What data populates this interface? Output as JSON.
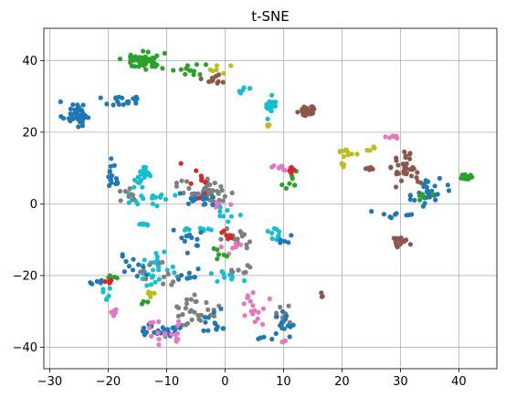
{
  "chart_data": {
    "type": "scatter",
    "title": "t-SNE",
    "xlabel": "",
    "ylabel": "",
    "xlim": [
      -31,
      46.5
    ],
    "ylim": [
      -46,
      49
    ],
    "xticks": [
      -30,
      -20,
      -10,
      0,
      10,
      20,
      30,
      40
    ],
    "yticks": [
      -40,
      -20,
      0,
      20,
      40
    ],
    "xtick_labels": [
      "−30",
      "−20",
      "−10",
      "0",
      "10",
      "20",
      "30",
      "40"
    ],
    "ytick_labels": [
      "−40",
      "−20",
      "0",
      "20",
      "40"
    ],
    "grid": true,
    "legend": "none",
    "colors": {
      "blue": "#1f77b4",
      "orange": "#ff7f0e",
      "green": "#2ca02c",
      "red": "#d62728",
      "brown": "#8c564b",
      "pink": "#e377c2",
      "gray": "#7f7f7f",
      "olive": "#bcbd22",
      "cyan": "#17becf",
      "grid": "#b0b0b0"
    },
    "clusters": [
      {
        "color": "blue",
        "cx": -25.5,
        "cy": 25,
        "sx": 2.0,
        "sy": 3.0,
        "n": 40
      },
      {
        "color": "blue",
        "cx": -18,
        "cy": 29,
        "sx": 2.5,
        "sy": 1.5,
        "n": 18
      },
      {
        "color": "green",
        "cx": -14,
        "cy": 40,
        "sx": 3.0,
        "sy": 2.0,
        "n": 55
      },
      {
        "color": "green",
        "cx": -6,
        "cy": 37,
        "sx": 2.2,
        "sy": 2.0,
        "n": 12
      },
      {
        "color": "brown",
        "cx": -2,
        "cy": 35,
        "sx": 1.6,
        "sy": 1.5,
        "n": 12
      },
      {
        "color": "olive",
        "cx": -1,
        "cy": 38,
        "sx": 1.5,
        "sy": 1.2,
        "n": 6
      },
      {
        "color": "cyan",
        "cx": 8,
        "cy": 27,
        "sx": 1.0,
        "sy": 2.5,
        "n": 18
      },
      {
        "color": "cyan",
        "cx": 3,
        "cy": 32,
        "sx": 1.5,
        "sy": 1.0,
        "n": 6
      },
      {
        "color": "brown",
        "cx": 14,
        "cy": 26,
        "sx": 1.2,
        "sy": 1.5,
        "n": 28
      },
      {
        "color": "olive",
        "cx": 7.5,
        "cy": 22,
        "sx": 0.4,
        "sy": 0.5,
        "n": 5
      },
      {
        "color": "olive",
        "cx": 21,
        "cy": 14.5,
        "sx": 1.5,
        "sy": 1.0,
        "n": 10
      },
      {
        "color": "olive",
        "cx": 25,
        "cy": 15,
        "sx": 1.0,
        "sy": 1.0,
        "n": 5
      },
      {
        "color": "olive",
        "cx": 20,
        "cy": 10.5,
        "sx": 0.4,
        "sy": 0.6,
        "n": 4
      },
      {
        "color": "brown",
        "cx": 25,
        "cy": 10,
        "sx": 0.8,
        "sy": 0.5,
        "n": 5
      },
      {
        "color": "pink",
        "cx": 29,
        "cy": 18.5,
        "sx": 1.2,
        "sy": 0.6,
        "n": 6
      },
      {
        "color": "brown",
        "cx": 31,
        "cy": 10,
        "sx": 2.0,
        "sy": 4.0,
        "n": 35
      },
      {
        "color": "brown",
        "cx": 30,
        "cy": -10.5,
        "sx": 1.3,
        "sy": 1.3,
        "n": 15
      },
      {
        "color": "blue",
        "cx": 35,
        "cy": 3,
        "sx": 2.5,
        "sy": 3.5,
        "n": 30
      },
      {
        "color": "blue",
        "cx": 29,
        "cy": -3,
        "sx": 3.0,
        "sy": 2.0,
        "n": 10
      },
      {
        "color": "green",
        "cx": 41.5,
        "cy": 7.5,
        "sx": 1.0,
        "sy": 1.0,
        "n": 14
      },
      {
        "color": "green",
        "cx": 34,
        "cy": 2,
        "sx": 2.0,
        "sy": 1.0,
        "n": 5
      },
      {
        "color": "cyan",
        "cx": -14,
        "cy": 8,
        "sx": 1.5,
        "sy": 2.0,
        "n": 22
      },
      {
        "color": "cyan",
        "cx": -13,
        "cy": 2,
        "sx": 4.0,
        "sy": 2.0,
        "n": 20
      },
      {
        "color": "cyan",
        "cx": -14,
        "cy": -5.5,
        "sx": 1.0,
        "sy": 0.5,
        "n": 8
      },
      {
        "color": "blue",
        "cx": -19,
        "cy": 8,
        "sx": 1.0,
        "sy": 4.0,
        "n": 14
      },
      {
        "color": "gray",
        "cx": -16,
        "cy": 3,
        "sx": 2.0,
        "sy": 2.0,
        "n": 8
      },
      {
        "color": "gray",
        "cx": -3,
        "cy": 3,
        "sx": 4.0,
        "sy": 3.0,
        "n": 45
      },
      {
        "color": "pink",
        "cx": -1,
        "cy": 0,
        "sx": 2.0,
        "sy": 1.5,
        "n": 5
      },
      {
        "color": "red",
        "cx": -5,
        "cy": 6,
        "sx": 3.0,
        "sy": 4.0,
        "n": 10
      },
      {
        "color": "blue",
        "cx": -4,
        "cy": 2,
        "sx": 3.0,
        "sy": 3.0,
        "n": 12
      },
      {
        "color": "pink",
        "cx": 10,
        "cy": 10,
        "sx": 1.5,
        "sy": 0.6,
        "n": 8
      },
      {
        "color": "green",
        "cx": 11,
        "cy": 6,
        "sx": 1.5,
        "sy": 3.0,
        "n": 8
      },
      {
        "color": "red",
        "cx": 12,
        "cy": 9.5,
        "sx": 1.5,
        "sy": 1.0,
        "n": 5
      },
      {
        "color": "cyan",
        "cx": -5,
        "cy": -7,
        "sx": 2.0,
        "sy": 0.5,
        "n": 8
      },
      {
        "color": "cyan",
        "cx": 0,
        "cy": -3,
        "sx": 2.0,
        "sy": 1.5,
        "n": 8
      },
      {
        "color": "gray",
        "cx": 2,
        "cy": -10,
        "sx": 3.0,
        "sy": 3.0,
        "n": 15
      },
      {
        "color": "pink",
        "cx": 2,
        "cy": -12,
        "sx": 2.0,
        "sy": 2.0,
        "n": 6
      },
      {
        "color": "red",
        "cx": 0,
        "cy": -9,
        "sx": 1.5,
        "sy": 1.5,
        "n": 6
      },
      {
        "color": "blue",
        "cx": -6,
        "cy": -10,
        "sx": 3.0,
        "sy": 3.0,
        "n": 12
      },
      {
        "color": "green",
        "cx": -1,
        "cy": -14,
        "sx": 2.0,
        "sy": 1.5,
        "n": 6
      },
      {
        "color": "cyan",
        "cx": 9,
        "cy": -8,
        "sx": 1.5,
        "sy": 1.5,
        "n": 10
      },
      {
        "color": "blue",
        "cx": 10,
        "cy": -10,
        "sx": 1.0,
        "sy": 2.0,
        "n": 5
      },
      {
        "color": "cyan",
        "cx": -12,
        "cy": -18,
        "sx": 3.0,
        "sy": 4.0,
        "n": 25
      },
      {
        "color": "blue",
        "cx": -16,
        "cy": -17,
        "sx": 2.0,
        "sy": 3.0,
        "n": 12
      },
      {
        "color": "gray",
        "cx": -12,
        "cy": -19,
        "sx": 3.0,
        "sy": 3.0,
        "n": 12
      },
      {
        "color": "green",
        "cx": -19,
        "cy": -21,
        "sx": 2.0,
        "sy": 1.0,
        "n": 6
      },
      {
        "color": "red",
        "cx": -20,
        "cy": -21.5,
        "sx": 1.0,
        "sy": 0.5,
        "n": 4
      },
      {
        "color": "blue",
        "cx": -22,
        "cy": -22,
        "sx": 1.0,
        "sy": 0.5,
        "n": 5
      },
      {
        "color": "cyan",
        "cx": -20,
        "cy": -26,
        "sx": 1.0,
        "sy": 2.0,
        "n": 6
      },
      {
        "color": "pink",
        "cx": -19,
        "cy": -31,
        "sx": 1.0,
        "sy": 1.5,
        "n": 5
      },
      {
        "color": "cyan",
        "cx": 0,
        "cy": -20,
        "sx": 2.5,
        "sy": 2.0,
        "n": 12
      },
      {
        "color": "gray",
        "cx": 3,
        "cy": -18,
        "sx": 2.0,
        "sy": 2.0,
        "n": 8
      },
      {
        "color": "blue",
        "cx": -6,
        "cy": -20,
        "sx": 2.0,
        "sy": 2.0,
        "n": 8
      },
      {
        "color": "gray",
        "cx": -5,
        "cy": -30,
        "sx": 3.0,
        "sy": 3.5,
        "n": 30
      },
      {
        "color": "blue",
        "cx": -11,
        "cy": -35,
        "sx": 2.5,
        "sy": 2.5,
        "n": 28
      },
      {
        "color": "pink",
        "cx": -10,
        "cy": -36,
        "sx": 4.0,
        "sy": 3.0,
        "n": 18
      },
      {
        "color": "blue",
        "cx": -2,
        "cy": -33,
        "sx": 2.5,
        "sy": 3.0,
        "n": 14
      },
      {
        "color": "pink",
        "cx": 5,
        "cy": -29,
        "sx": 2.0,
        "sy": 4.0,
        "n": 18
      },
      {
        "color": "gray",
        "cx": 10,
        "cy": -30,
        "sx": 1.5,
        "sy": 3.0,
        "n": 12
      },
      {
        "color": "blue",
        "cx": 10,
        "cy": -34,
        "sx": 1.5,
        "sy": 3.0,
        "n": 14
      },
      {
        "color": "blue",
        "cx": 7,
        "cy": -37.5,
        "sx": 1.0,
        "sy": 0.5,
        "n": 4
      },
      {
        "color": "pink",
        "cx": 10,
        "cy": -38.5,
        "sx": 0.5,
        "sy": 0.5,
        "n": 3
      },
      {
        "color": "brown",
        "cx": 16.5,
        "cy": -25.5,
        "sx": 0.2,
        "sy": 0.5,
        "n": 3
      },
      {
        "color": "olive",
        "cx": -13,
        "cy": -25,
        "sx": 1.0,
        "sy": 1.0,
        "n": 5
      },
      {
        "color": "green",
        "cx": -14,
        "cy": -28,
        "sx": 1.0,
        "sy": 1.0,
        "n": 3
      }
    ]
  }
}
